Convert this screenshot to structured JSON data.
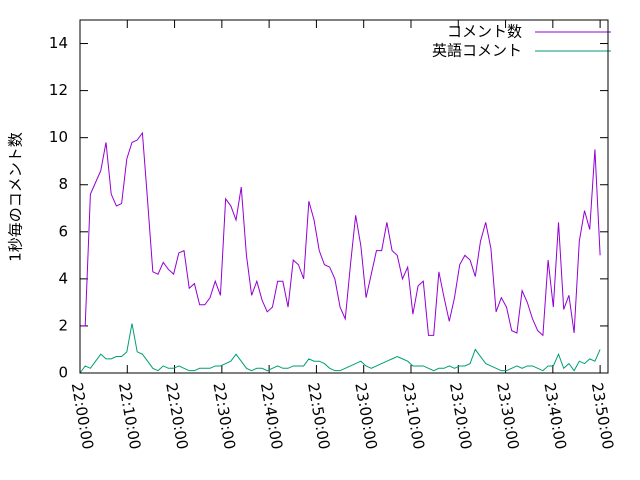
{
  "chart_data": {
    "type": "line",
    "ylabel": "1秒毎のコメント数",
    "x": [
      "22:00:00",
      "22:01:06",
      "22:02:12",
      "22:03:18",
      "22:04:24",
      "22:05:30",
      "22:06:36",
      "22:07:42",
      "22:08:48",
      "22:09:54",
      "22:11:00",
      "22:12:06",
      "22:13:12",
      "22:14:18",
      "22:15:24",
      "22:16:30",
      "22:17:36",
      "22:18:42",
      "22:19:48",
      "22:20:54",
      "22:22:00",
      "22:23:06",
      "22:24:12",
      "22:25:18",
      "22:26:24",
      "22:27:30",
      "22:28:36",
      "22:29:42",
      "22:30:48",
      "22:31:54",
      "22:33:00",
      "22:34:06",
      "22:35:12",
      "22:36:18",
      "22:37:24",
      "22:38:30",
      "22:39:36",
      "22:40:42",
      "22:41:48",
      "22:42:54",
      "22:44:00",
      "22:45:06",
      "22:46:12",
      "22:47:18",
      "22:48:24",
      "22:49:30",
      "22:50:36",
      "22:51:42",
      "22:52:48",
      "22:53:54",
      "22:55:00",
      "22:56:06",
      "22:57:12",
      "22:58:18",
      "22:59:24",
      "23:00:30",
      "23:01:36",
      "23:02:42",
      "23:03:48",
      "23:04:54",
      "23:06:00",
      "23:07:06",
      "23:08:12",
      "23:09:18",
      "23:10:24",
      "23:11:30",
      "23:12:36",
      "23:13:42",
      "23:14:48",
      "23:15:54",
      "23:17:00",
      "23:18:06",
      "23:19:12",
      "23:20:18",
      "23:21:24",
      "23:22:30",
      "23:23:36",
      "23:24:42",
      "23:25:48",
      "23:26:54",
      "23:28:00",
      "23:29:06",
      "23:30:12",
      "23:31:18",
      "23:32:24",
      "23:33:30",
      "23:34:36",
      "23:35:42",
      "23:36:48",
      "23:37:54",
      "23:39:00",
      "23:40:06",
      "23:41:12",
      "23:42:18",
      "23:43:24",
      "23:44:30",
      "23:45:36",
      "23:46:42",
      "23:47:48",
      "23:48:54",
      "23:50:00"
    ],
    "series": [
      {
        "name": "コメント数",
        "color": "#9400d3",
        "values": [
          2.0,
          2.0,
          7.6,
          8.1,
          8.6,
          9.8,
          7.6,
          7.1,
          7.2,
          9.1,
          9.8,
          9.9,
          10.2,
          7.3,
          4.3,
          4.2,
          4.7,
          4.4,
          4.2,
          5.1,
          5.2,
          3.6,
          3.8,
          2.9,
          2.9,
          3.2,
          3.9,
          3.3,
          7.4,
          7.1,
          6.5,
          7.9,
          5.0,
          3.3,
          3.9,
          3.1,
          2.6,
          2.8,
          3.9,
          3.9,
          2.8,
          4.8,
          4.6,
          4.0,
          7.3,
          6.5,
          5.2,
          4.6,
          4.5,
          4.0,
          2.8,
          2.3,
          4.6,
          6.7,
          5.4,
          3.2,
          4.2,
          5.2,
          5.2,
          6.4,
          5.2,
          5.0,
          4.0,
          4.5,
          2.5,
          3.7,
          3.9,
          1.6,
          1.6,
          4.3,
          3.2,
          2.2,
          3.2,
          4.6,
          5.0,
          4.8,
          4.1,
          5.6,
          6.4,
          5.3,
          2.6,
          3.2,
          2.8,
          1.8,
          1.7,
          3.5,
          3.0,
          2.3,
          1.8,
          1.6,
          4.8,
          2.8,
          6.4,
          2.7,
          3.3,
          1.7,
          5.6,
          6.9,
          6.1,
          9.5,
          5.0
        ]
      },
      {
        "name": "英語コメント",
        "color": "#009e73",
        "values": [
          0.0,
          0.3,
          0.2,
          0.5,
          0.8,
          0.6,
          0.6,
          0.7,
          0.7,
          0.9,
          2.1,
          0.9,
          0.8,
          0.5,
          0.2,
          0.1,
          0.3,
          0.2,
          0.2,
          0.3,
          0.2,
          0.1,
          0.1,
          0.2,
          0.2,
          0.2,
          0.3,
          0.3,
          0.4,
          0.5,
          0.8,
          0.5,
          0.2,
          0.1,
          0.2,
          0.2,
          0.1,
          0.2,
          0.3,
          0.2,
          0.2,
          0.3,
          0.3,
          0.3,
          0.6,
          0.5,
          0.5,
          0.4,
          0.2,
          0.1,
          0.1,
          0.2,
          0.3,
          0.4,
          0.5,
          0.3,
          0.2,
          0.3,
          0.4,
          0.5,
          0.6,
          0.7,
          0.6,
          0.5,
          0.3,
          0.3,
          0.3,
          0.2,
          0.1,
          0.2,
          0.2,
          0.3,
          0.2,
          0.3,
          0.3,
          0.4,
          1.0,
          0.7,
          0.4,
          0.3,
          0.2,
          0.1,
          0.1,
          0.2,
          0.3,
          0.2,
          0.3,
          0.3,
          0.2,
          0.1,
          0.3,
          0.3,
          0.8,
          0.2,
          0.4,
          0.1,
          0.5,
          0.4,
          0.6,
          0.5,
          1.0
        ]
      }
    ],
    "xlim": [
      "22:00:00",
      "23:51:40"
    ],
    "xticks": [
      "22:00:00",
      "22:10:00",
      "22:20:00",
      "22:30:00",
      "22:40:00",
      "22:50:00",
      "23:00:00",
      "23:10:00",
      "23:20:00",
      "23:30:00",
      "23:40:00",
      "23:50:00"
    ],
    "ylim": [
      0,
      15
    ],
    "yticks": [
      0,
      2,
      4,
      6,
      8,
      10,
      12,
      14
    ],
    "legend": "top-right"
  }
}
